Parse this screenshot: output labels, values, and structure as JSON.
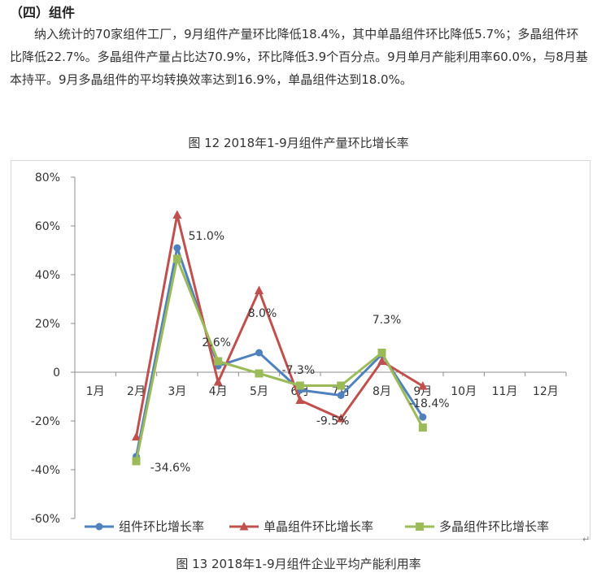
{
  "section": {
    "heading": "（四）组件",
    "paragraph": "纳入统计的70家组件工厂，9月组件产量环比降低18.4%，其中单晶组件环比降低5.7%；多晶组件环比降低22.7%。多晶组件产量占比达70.9%，环比降低3.9个百分点。9月单月产能利用率60.0%，与8月基本持平。9月多晶组件的平均转换效率达到16.9%，单晶组件达到18.0%。"
  },
  "figure12": {
    "caption": "图 12 2018年1-9月组件产量环比增长率"
  },
  "figure13": {
    "caption": "图 13 2018年1-9月组件企业平均产能利用率"
  },
  "chart_data": {
    "type": "line",
    "title": "",
    "xlabel": "",
    "ylabel": "",
    "categories": [
      "1月",
      "2月",
      "3月",
      "4月",
      "5月",
      "6月",
      "7月",
      "8月",
      "9月",
      "10月",
      "11月",
      "12月"
    ],
    "ylim": [
      -60,
      80
    ],
    "yticks": [
      80,
      60,
      40,
      20,
      0,
      -20,
      -40,
      -60
    ],
    "ytick_labels": [
      "80%",
      "60%",
      "40%",
      "20%",
      "0",
      "-20%",
      "-40%",
      "-60%"
    ],
    "grid": false,
    "legend_position": "bottom",
    "series": [
      {
        "name": "组件环比增长率",
        "color": "#4f81bd",
        "marker": "circle",
        "values": [
          null,
          -34.6,
          51.0,
          2.6,
          8.0,
          -7.3,
          -9.5,
          7.3,
          -18.4,
          null,
          null,
          null
        ]
      },
      {
        "name": "单晶组件环比增长率",
        "color": "#c0504d",
        "marker": "triangle",
        "values": [
          null,
          -26.5,
          64.5,
          -4.0,
          33.5,
          -11.5,
          -19.0,
          4.5,
          -5.7,
          null,
          null,
          null
        ]
      },
      {
        "name": "多晶组件环比增长率",
        "color": "#9bbb59",
        "marker": "square",
        "values": [
          null,
          -36.5,
          46.5,
          4.5,
          -0.5,
          -5.5,
          -5.5,
          8.0,
          -22.7,
          null,
          null,
          null
        ]
      }
    ],
    "annotations": [
      {
        "text": "-34.6%",
        "x_index": 1,
        "y": -34.6
      },
      {
        "text": "51.0%",
        "x_index": 2,
        "y": 51.0
      },
      {
        "text": "2.6%",
        "x_index": 3,
        "y": 2.6
      },
      {
        "text": "8.0%",
        "x_index": 4,
        "y": 8.0
      },
      {
        "text": "-7.3%",
        "x_index": 5,
        "y": -7.3
      },
      {
        "text": "-9.5%",
        "x_index": 6,
        "y": -9.5
      },
      {
        "text": "7.3%",
        "x_index": 7,
        "y": 7.3
      },
      {
        "text": "-18.4%",
        "x_index": 8,
        "y": -18.4
      }
    ]
  }
}
